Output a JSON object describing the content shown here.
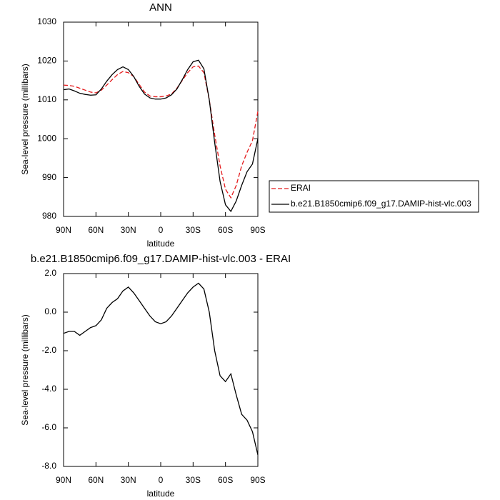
{
  "chart_data": [
    {
      "type": "line",
      "title": "ANN",
      "xlabel": "latitude",
      "ylabel": "Sea-level pressure (millibars)",
      "x": [
        90,
        85,
        80,
        75,
        70,
        65,
        60,
        55,
        50,
        45,
        40,
        35,
        30,
        25,
        20,
        15,
        10,
        5,
        0,
        -5,
        -10,
        -15,
        -20,
        -25,
        -30,
        -35,
        -40,
        -45,
        -50,
        -55,
        -60,
        -65,
        -70,
        -75,
        -80,
        -85,
        -90
      ],
      "series": [
        {
          "name": "ERAI",
          "color": "#e41a1c",
          "linestyle": "dashed",
          "values": [
            1013.8,
            1013.7,
            1013.5,
            1013,
            1012.5,
            1012,
            1011.8,
            1012.5,
            1013.8,
            1015.2,
            1016.5,
            1017.3,
            1017,
            1016,
            1014,
            1012,
            1011,
            1010.8,
            1010.8,
            1011,
            1011.5,
            1013,
            1015,
            1017,
            1018.5,
            1018.7,
            1017,
            1010,
            1001,
            993,
            987,
            984.8,
            988,
            993,
            996.5,
            999.5,
            1007
          ]
        },
        {
          "name": "b.e21.B1850cmip6.f09_g17.DAMIP-hist-vlc.003",
          "color": "#000000",
          "linestyle": "solid",
          "values": [
            1012.6,
            1012.8,
            1012.3,
            1011.7,
            1011.4,
            1011.2,
            1011.3,
            1012.8,
            1014.8,
            1016.5,
            1017.8,
            1018.5,
            1017.8,
            1016,
            1013.5,
            1011.5,
            1010.5,
            1010.2,
            1010.2,
            1010.5,
            1011.3,
            1012.8,
            1015.2,
            1017.8,
            1019.8,
            1020.2,
            1018,
            1010,
            999,
            989,
            983,
            981.3,
            984,
            988,
            991.5,
            993.5,
            1000
          ]
        }
      ],
      "xlim": [
        90,
        -90
      ],
      "xticks": [
        {
          "value": 90,
          "label": "90N"
        },
        {
          "value": 60,
          "label": "60N"
        },
        {
          "value": 30,
          "label": "30N"
        },
        0,
        {
          "value": -30,
          "label": "30S"
        },
        {
          "value": -60,
          "label": "60S"
        },
        {
          "value": -90,
          "label": "90S"
        }
      ],
      "ylim": [
        980,
        1030
      ],
      "yticks": [
        980,
        990,
        1000,
        1010,
        1020,
        1030
      ],
      "legend": "right"
    },
    {
      "type": "line",
      "title": "b.e21.B1850cmip6.f09_g17.DAMIP-hist-vlc.003 - ERAI",
      "xlabel": "latitude",
      "ylabel": "Sea-level pressure (millibars)",
      "x": [
        90,
        85,
        80,
        75,
        70,
        65,
        60,
        55,
        50,
        45,
        40,
        35,
        30,
        25,
        20,
        15,
        10,
        5,
        0,
        -5,
        -10,
        -15,
        -20,
        -25,
        -30,
        -35,
        -40,
        -45,
        -50,
        -55,
        -60,
        -65,
        -70,
        -75,
        -80,
        -85,
        -90
      ],
      "values": [
        -1.1,
        -1.0,
        -1.0,
        -1.2,
        -1.0,
        -0.8,
        -0.7,
        -0.4,
        0.2,
        0.5,
        0.7,
        1.1,
        1.3,
        1.0,
        0.6,
        0.2,
        -0.2,
        -0.5,
        -0.6,
        -0.5,
        -0.2,
        0.2,
        0.6,
        1.0,
        1.3,
        1.5,
        1.2,
        0.0,
        -2.0,
        -3.3,
        -3.6,
        -3.2,
        -4.3,
        -5.3,
        -5.6,
        -6.2,
        -7.4
      ],
      "color": "#000000",
      "xlim": [
        90,
        -90
      ],
      "xticks": [
        {
          "value": 90,
          "label": "90N"
        },
        {
          "value": 60,
          "label": "60N"
        },
        {
          "value": 30,
          "label": "30N"
        },
        0,
        {
          "value": -30,
          "label": "30S"
        },
        {
          "value": -60,
          "label": "60S"
        },
        {
          "value": -90,
          "label": "90S"
        }
      ],
      "ylim": [
        -8,
        2
      ],
      "yticks": [
        {
          "value": -8,
          "label": "-8.0"
        },
        {
          "value": -6,
          "label": "-6.0"
        },
        {
          "value": -4,
          "label": "-4.0"
        },
        {
          "value": -2,
          "label": "-2.0"
        },
        {
          "value": 0,
          "label": "0.0"
        },
        {
          "value": 2,
          "label": "2.0"
        }
      ]
    }
  ]
}
